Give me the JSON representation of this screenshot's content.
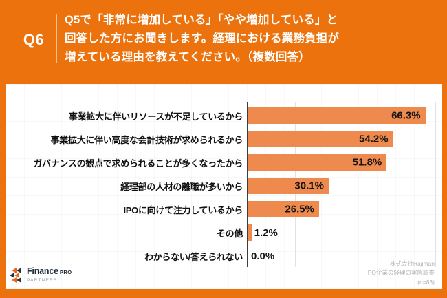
{
  "header": {
    "question_number": "Q6",
    "question_lines": [
      "Q5で「非常に増加している」「やや増加している」と",
      "回答した方にお聞きします。経理における業務負担が",
      "増えている理由を教えてください。（複数回答）"
    ]
  },
  "chart_data": {
    "type": "bar",
    "orientation": "horizontal",
    "title": "",
    "xlabel": "",
    "ylabel": "",
    "categories": [
      "事業拡大に伴いリソースが不足しているから",
      "事業拡大に伴い高度な会計技術が求められるから",
      "ガバナンスの観点で求められることが多くなったから",
      "経理部の人材の離職が多いから",
      "IPOに向けて注力しているから",
      "その他",
      "わからない/答えられない"
    ],
    "values": [
      66.3,
      54.2,
      51.8,
      30.1,
      26.5,
      1.2,
      0.0
    ],
    "value_labels": [
      "66.3%",
      "54.2%",
      "51.8%",
      "30.1%",
      "26.5%",
      "1.2%",
      "0.0%"
    ],
    "xlim": [
      0,
      70
    ],
    "gridline_positions": [
      17.5,
      35,
      52.5,
      70
    ],
    "axis_tick_labels_visible": false,
    "legend": "none",
    "bar_color": "#ef8a4e",
    "inside_label_min_value": 10
  },
  "logo": {
    "brand": "Finance",
    "brand_suffix": "PRO",
    "subbrand": "PARTNERS"
  },
  "footer": {
    "company": "株式会社Hajimari",
    "survey": "IPO企業の経理の実態調査",
    "sample": "(n=83)"
  },
  "colors": {
    "background_orange": "#eb720c",
    "bar_orange": "#ef8a4e",
    "card_white": "#ffffff",
    "axis_dark": "#3d3d3d",
    "gridline_gray": "#e2e2e2",
    "source_gray": "#b3b3b3"
  }
}
